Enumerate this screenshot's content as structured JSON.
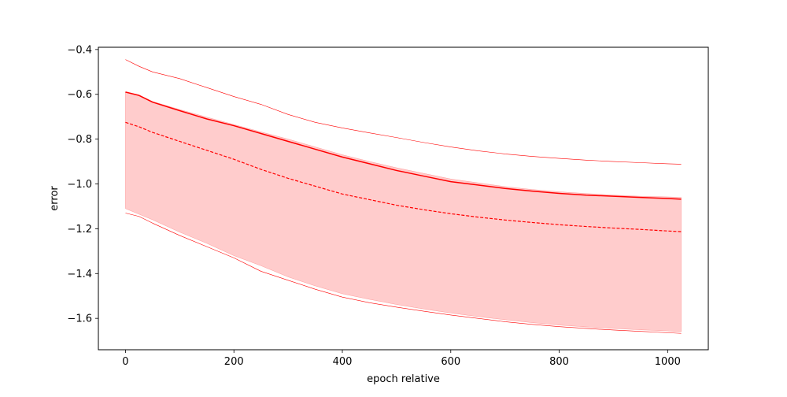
{
  "chart_data": {
    "type": "line",
    "title": "",
    "xlabel": "epoch relative",
    "ylabel": "error",
    "xlim": [
      -50,
      1075
    ],
    "ylim": [
      -1.74,
      -0.39
    ],
    "xticks": [
      0,
      200,
      400,
      600,
      800,
      1000
    ],
    "xtick_labels": [
      "0",
      "200",
      "400",
      "600",
      "800",
      "1000"
    ],
    "yticks": [
      -0.4,
      -0.6,
      -0.8,
      -1.0,
      -1.2,
      -1.4,
      -1.6
    ],
    "ytick_labels": [
      "−0.4",
      "−0.6",
      "−0.8",
      "−1.0",
      "−1.2",
      "−1.4",
      "−1.6"
    ],
    "grid": false,
    "legend": false,
    "x": [
      0,
      25,
      50,
      100,
      150,
      200,
      250,
      300,
      350,
      400,
      450,
      500,
      550,
      600,
      650,
      700,
      750,
      800,
      850,
      900,
      950,
      1000,
      1025
    ],
    "series": [
      {
        "style": "solid",
        "color": "#ff0000",
        "values": [
          -0.59,
          -0.605,
          -0.635,
          -0.673,
          -0.71,
          -0.74,
          -0.775,
          -0.81,
          -0.845,
          -0.88,
          -0.91,
          -0.94,
          -0.965,
          -0.99,
          -1.005,
          -1.02,
          -1.032,
          -1.042,
          -1.05,
          -1.055,
          -1.06,
          -1.065,
          -1.068
        ]
      },
      {
        "style": "dashed",
        "color": "#ff0000",
        "values": [
          -0.725,
          -0.745,
          -0.77,
          -0.81,
          -0.85,
          -0.89,
          -0.935,
          -0.975,
          -1.01,
          -1.045,
          -1.07,
          -1.095,
          -1.115,
          -1.133,
          -1.148,
          -1.161,
          -1.172,
          -1.182,
          -1.19,
          -1.197,
          -1.203,
          -1.21,
          -1.213
        ]
      },
      {
        "style": "thin",
        "color": "#ff0000",
        "values": [
          -0.445,
          -0.475,
          -0.5,
          -0.53,
          -0.57,
          -0.61,
          -0.645,
          -0.69,
          -0.725,
          -0.75,
          -0.772,
          -0.793,
          -0.815,
          -0.835,
          -0.852,
          -0.866,
          -0.877,
          -0.886,
          -0.894,
          -0.9,
          -0.905,
          -0.91,
          -0.912
        ]
      },
      {
        "style": "thin",
        "color": "#ff0000",
        "values": [
          -1.13,
          -1.145,
          -1.175,
          -1.23,
          -1.28,
          -1.33,
          -1.39,
          -1.43,
          -1.47,
          -1.505,
          -1.53,
          -1.55,
          -1.568,
          -1.585,
          -1.6,
          -1.615,
          -1.627,
          -1.637,
          -1.645,
          -1.652,
          -1.658,
          -1.664,
          -1.667
        ]
      }
    ],
    "band": {
      "color": "#ffcccc",
      "upper": [
        -0.59,
        -0.603,
        -0.632,
        -0.668,
        -0.702,
        -0.735,
        -0.768,
        -0.8,
        -0.835,
        -0.87,
        -0.9,
        -0.928,
        -0.953,
        -0.978,
        -0.995,
        -1.012,
        -1.025,
        -1.035,
        -1.043,
        -1.05,
        -1.055,
        -1.058,
        -1.06
      ],
      "lower": [
        -1.11,
        -1.135,
        -1.16,
        -1.215,
        -1.265,
        -1.32,
        -1.365,
        -1.415,
        -1.455,
        -1.49,
        -1.515,
        -1.538,
        -1.558,
        -1.576,
        -1.592,
        -1.606,
        -1.619,
        -1.63,
        -1.638,
        -1.645,
        -1.651,
        -1.656,
        -1.66
      ]
    }
  }
}
